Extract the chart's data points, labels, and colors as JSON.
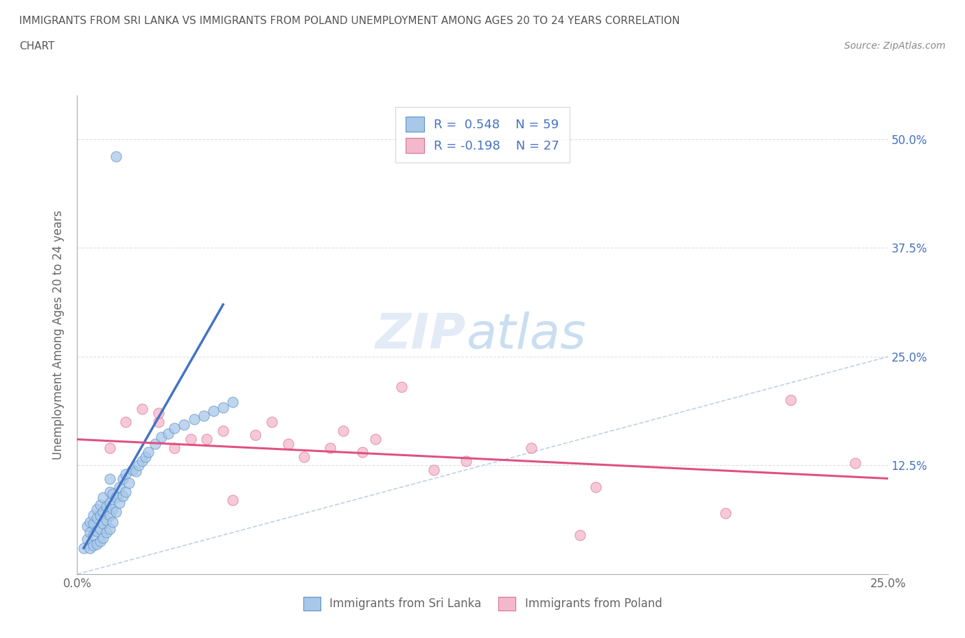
{
  "title_line1": "IMMIGRANTS FROM SRI LANKA VS IMMIGRANTS FROM POLAND UNEMPLOYMENT AMONG AGES 20 TO 24 YEARS CORRELATION",
  "title_line2": "CHART",
  "source_text": "Source: ZipAtlas.com",
  "ylabel": "Unemployment Among Ages 20 to 24 years",
  "xlim": [
    0.0,
    0.25
  ],
  "ylim": [
    0.0,
    0.55
  ],
  "ytick_positions": [
    0.125,
    0.25,
    0.375,
    0.5
  ],
  "ytick_labels_right": [
    "12.5%",
    "25.0%",
    "37.5%",
    "50.0%"
  ],
  "xtick_positions": [
    0.0,
    0.25
  ],
  "xtick_labels": [
    "0.0%",
    "25.0%"
  ],
  "color_sri_lanka": "#a8c8e8",
  "edge_sri_lanka": "#5b8fc9",
  "color_poland": "#f4b8cc",
  "edge_poland": "#d97090",
  "line_color_sri_lanka": "#4472c4",
  "line_color_poland": "#e05080",
  "diagonal_color": "#b0c4de",
  "background_color": "#ffffff",
  "grid_color": "#e0e0e0",
  "watermark_color": "#cce0f0",
  "sri_lanka_x": [
    0.002,
    0.003,
    0.003,
    0.004,
    0.004,
    0.004,
    0.005,
    0.005,
    0.005,
    0.005,
    0.006,
    0.006,
    0.006,
    0.006,
    0.007,
    0.007,
    0.007,
    0.007,
    0.008,
    0.008,
    0.008,
    0.008,
    0.009,
    0.009,
    0.009,
    0.01,
    0.01,
    0.01,
    0.01,
    0.01,
    0.011,
    0.011,
    0.011,
    0.012,
    0.012,
    0.013,
    0.013,
    0.014,
    0.014,
    0.015,
    0.015,
    0.016,
    0.017,
    0.018,
    0.019,
    0.02,
    0.021,
    0.022,
    0.024,
    0.026,
    0.028,
    0.03,
    0.033,
    0.036,
    0.039,
    0.042,
    0.045,
    0.048,
    0.012
  ],
  "sri_lanka_y": [
    0.03,
    0.04,
    0.055,
    0.03,
    0.048,
    0.06,
    0.033,
    0.045,
    0.058,
    0.068,
    0.035,
    0.05,
    0.065,
    0.075,
    0.038,
    0.052,
    0.068,
    0.08,
    0.042,
    0.058,
    0.072,
    0.088,
    0.048,
    0.062,
    0.078,
    0.052,
    0.068,
    0.082,
    0.095,
    0.11,
    0.06,
    0.075,
    0.092,
    0.072,
    0.088,
    0.082,
    0.1,
    0.09,
    0.11,
    0.095,
    0.115,
    0.105,
    0.12,
    0.118,
    0.125,
    0.13,
    0.135,
    0.14,
    0.15,
    0.158,
    0.162,
    0.168,
    0.172,
    0.178,
    0.182,
    0.188,
    0.192,
    0.198,
    0.48
  ],
  "poland_x": [
    0.01,
    0.015,
    0.02,
    0.025,
    0.025,
    0.03,
    0.035,
    0.04,
    0.045,
    0.048,
    0.055,
    0.06,
    0.065,
    0.07,
    0.078,
    0.082,
    0.088,
    0.092,
    0.1,
    0.11,
    0.12,
    0.14,
    0.155,
    0.16,
    0.2,
    0.22,
    0.24
  ],
  "poland_y": [
    0.145,
    0.175,
    0.19,
    0.175,
    0.185,
    0.145,
    0.155,
    0.155,
    0.165,
    0.085,
    0.16,
    0.175,
    0.15,
    0.135,
    0.145,
    0.165,
    0.14,
    0.155,
    0.215,
    0.12,
    0.13,
    0.145,
    0.045,
    0.1,
    0.07,
    0.2,
    0.128
  ],
  "sl_line_x": [
    0.002,
    0.045
  ],
  "sl_line_y": [
    0.03,
    0.31
  ],
  "pl_line_x": [
    0.0,
    0.25
  ],
  "pl_line_y": [
    0.155,
    0.11
  ]
}
